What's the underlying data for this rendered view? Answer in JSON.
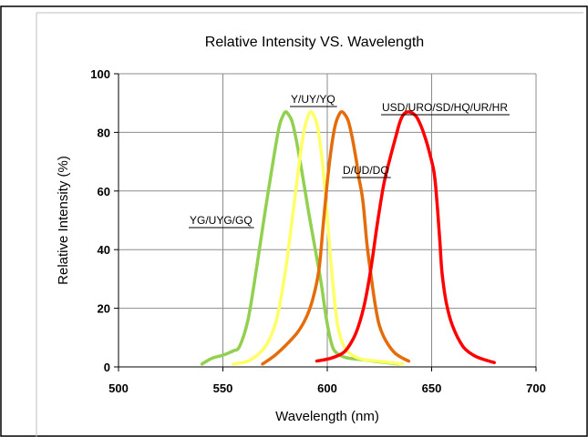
{
  "chart_data": {
    "type": "line",
    "title": "Relative Intensity VS. Wavelength",
    "xlabel": "Wavelength (nm)",
    "ylabel": "Relative Intensity (%)",
    "xlim": [
      500,
      700
    ],
    "ylim": [
      0,
      100
    ],
    "xticks": [
      500,
      550,
      600,
      650,
      700
    ],
    "yticks": [
      0,
      20,
      40,
      60,
      80,
      100
    ],
    "grid": true,
    "series": [
      {
        "name": "YG/UYG/GQ",
        "color": "#92d050",
        "x": [
          540,
          545,
          550,
          555,
          558,
          562,
          566,
          570,
          574,
          577,
          579,
          580,
          581,
          583,
          585,
          588,
          591,
          594,
          597,
          599,
          601,
          603,
          606,
          610,
          616,
          622,
          628,
          634
        ],
        "y": [
          1,
          3,
          4,
          5.5,
          7,
          16,
          33,
          52,
          70,
          82,
          86,
          87,
          86.5,
          84,
          78,
          66,
          53,
          41,
          29,
          19,
          11,
          6,
          4,
          3,
          2.5,
          2,
          1.5,
          1
        ]
      },
      {
        "name": "Y/UY/YQ",
        "color": "#ffff66",
        "x": [
          555,
          562,
          568,
          572,
          576,
          580,
          584,
          587,
          589,
          591,
          592,
          593,
          595,
          597,
          599,
          601,
          603,
          605,
          608,
          612,
          617,
          624,
          630,
          636
        ],
        "y": [
          1,
          2,
          5,
          9,
          17,
          33,
          55,
          72,
          81,
          86,
          87,
          86.5,
          83,
          74,
          60,
          42,
          26,
          14,
          7,
          4,
          2.5,
          2,
          1.5,
          1
        ]
      },
      {
        "name": "D/UD/DQ",
        "color": "#e46c0a",
        "x": [
          569,
          575,
          581,
          586,
          590,
          593,
          596,
          598,
          600,
          602,
          604,
          606,
          607,
          608,
          610,
          612,
          614,
          615,
          617,
          619,
          621,
          623,
          625,
          628,
          632,
          636,
          639
        ],
        "y": [
          1,
          4,
          8,
          12,
          17,
          23,
          33,
          48,
          63,
          75,
          83,
          86.5,
          87,
          86.5,
          84,
          78,
          70,
          65,
          57,
          42,
          31,
          21,
          14,
          9,
          5,
          3,
          2
        ]
      },
      {
        "name": "USD/URO/SD/HQ/UR/HR",
        "color": "#ff0000",
        "x": [
          595,
          602,
          608,
          612,
          615,
          618,
          621,
          624,
          627,
          630,
          633,
          635,
          637,
          639,
          641,
          643,
          645,
          647,
          649,
          651,
          652,
          653,
          654,
          655,
          657,
          660,
          665,
          670,
          675,
          680
        ],
        "y": [
          2,
          3,
          5,
          9,
          14,
          22,
          34,
          49,
          62,
          71,
          79,
          84,
          86.5,
          87,
          86.5,
          85,
          82,
          78,
          73,
          67,
          61,
          52,
          42,
          32,
          22,
          14,
          7,
          4,
          2.5,
          1.5
        ]
      }
    ]
  }
}
